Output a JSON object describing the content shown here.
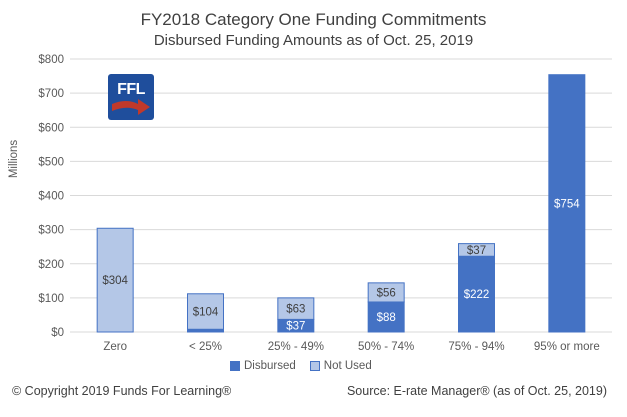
{
  "title": "FY2018 Category One Funding Commitments",
  "subtitle": "Disbursed Funding Amounts as of Oct. 25, 2019",
  "footer": {
    "copyright": "© Copyright 2019 Funds For Learning®",
    "source": "Source: E-rate Manager® (as of Oct. 25, 2019)"
  },
  "logo": {
    "text": "FFL",
    "colors": {
      "background": "#1f4e9c",
      "arrow": "#c0392b"
    }
  },
  "colors": {
    "disbursed": "#4472c4",
    "not_used": "#b4c7e7",
    "grid": "#d9d9d9",
    "outline": "#4472c4"
  },
  "chart_data": {
    "type": "bar",
    "stacked": true,
    "title": "FY2018 Category One Funding Commitments",
    "subtitle": "Disbursed Funding Amounts as of Oct. 25, 2019",
    "ylabel": "Millions",
    "xlabel": "",
    "ylim": [
      0,
      800
    ],
    "yticks": [
      0,
      100,
      200,
      300,
      400,
      500,
      600,
      700,
      800
    ],
    "ytick_labels": [
      "$0",
      "$100",
      "$200",
      "$300",
      "$400",
      "$500",
      "$600",
      "$700",
      "$800"
    ],
    "grid": true,
    "legend_position": "bottom",
    "categories": [
      "Zero",
      "< 25%",
      "25% - 49%",
      "50% - 74%",
      "75% - 94%",
      "95% or more"
    ],
    "series": [
      {
        "name": "Disbursed",
        "values": [
          0,
          8,
          37,
          88,
          222,
          754
        ],
        "labels": [
          "",
          "",
          "$37",
          "$88",
          "$222",
          "$754"
        ]
      },
      {
        "name": "Not Used",
        "values": [
          304,
          104,
          63,
          56,
          37,
          0
        ],
        "labels": [
          "$304",
          "$104",
          "$63",
          "$56",
          "$37",
          ""
        ]
      }
    ]
  }
}
